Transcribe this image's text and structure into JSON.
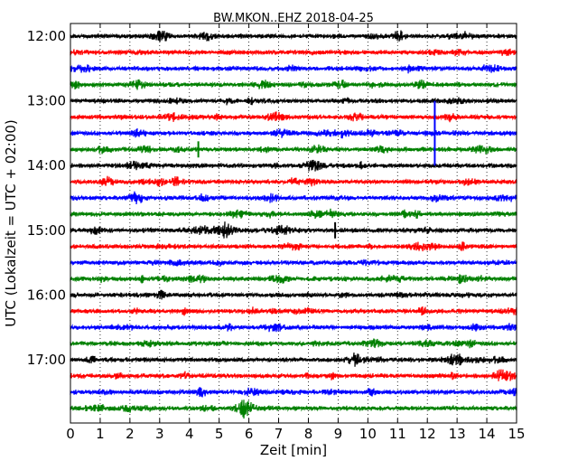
{
  "chart_data": {
    "type": "line",
    "title": "BW.MKON..EHZ 2018-04-25",
    "xlabel": "Zeit  [min]",
    "ylabel": "UTC (Lokalzeit = UTC + 02:00)",
    "xlim": [
      0,
      15
    ],
    "x_ticks": [
      "0",
      "1",
      "2",
      "3",
      "4",
      "5",
      "6",
      "7",
      "8",
      "9",
      "10",
      "11",
      "12",
      "13",
      "14",
      "15"
    ],
    "y_ticks": [
      "12:00",
      "13:00",
      "14:00",
      "15:00",
      "16:00",
      "17:00"
    ],
    "grid": "vertical-dotted",
    "colors": [
      "#000000",
      "#ff0000",
      "#0000ff",
      "#008000"
    ],
    "series": [
      {
        "start": "12:00",
        "color": "#000000"
      },
      {
        "start": "12:15",
        "color": "#ff0000"
      },
      {
        "start": "12:30",
        "color": "#0000ff"
      },
      {
        "start": "12:45",
        "color": "#008000"
      },
      {
        "start": "13:00",
        "color": "#000000"
      },
      {
        "start": "13:15",
        "color": "#ff0000"
      },
      {
        "start": "13:30",
        "color": "#0000ff"
      },
      {
        "start": "13:45",
        "color": "#008000"
      },
      {
        "start": "14:00",
        "color": "#000000"
      },
      {
        "start": "14:15",
        "color": "#ff0000"
      },
      {
        "start": "14:30",
        "color": "#0000ff"
      },
      {
        "start": "14:45",
        "color": "#008000"
      },
      {
        "start": "15:00",
        "color": "#000000"
      },
      {
        "start": "15:15",
        "color": "#ff0000"
      },
      {
        "start": "15:30",
        "color": "#0000ff"
      },
      {
        "start": "15:45",
        "color": "#008000"
      },
      {
        "start": "16:00",
        "color": "#000000"
      },
      {
        "start": "16:15",
        "color": "#ff0000"
      },
      {
        "start": "16:30",
        "color": "#0000ff"
      },
      {
        "start": "16:45",
        "color": "#008000"
      },
      {
        "start": "17:00",
        "color": "#000000"
      },
      {
        "start": "17:15",
        "color": "#ff0000"
      },
      {
        "start": "17:30",
        "color": "#0000ff"
      },
      {
        "start": "17:45",
        "color": "#008000"
      }
    ],
    "events": [
      {
        "start": "13:00",
        "minute": 12.25,
        "extent_rows": 4
      },
      {
        "start": "13:45",
        "minute": 4.3,
        "extent_rows": 0.5
      },
      {
        "start": "15:00",
        "minute": 8.9,
        "extent_rows": 0.5
      }
    ]
  }
}
